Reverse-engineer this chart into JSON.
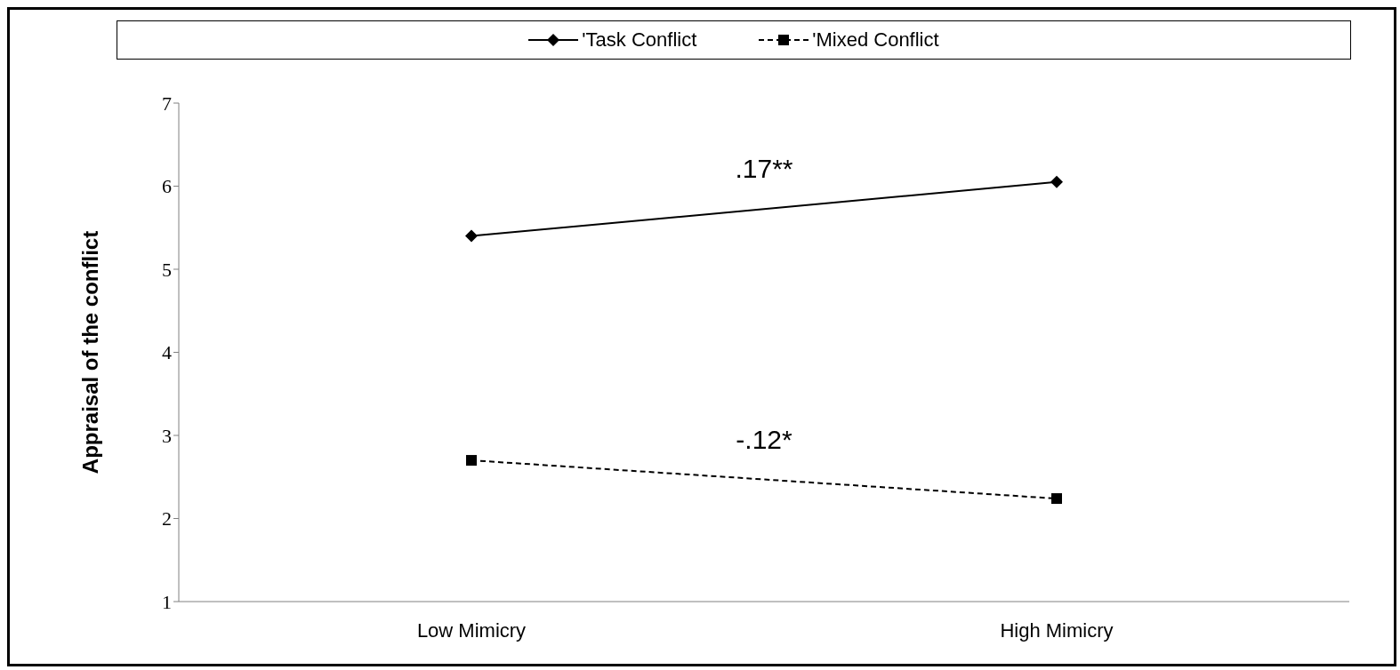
{
  "chart_data": {
    "type": "line",
    "ylabel": "Appraisal of the conflict",
    "categories": [
      "Low Mimicry",
      "High Mimicry"
    ],
    "series": [
      {
        "name": "'Task Conflict",
        "color": "#000000",
        "values": [
          5.4,
          6.05
        ],
        "marker": "diamond",
        "line_style": "solid"
      },
      {
        "name": "'Mixed Conflict",
        "color": "#000000",
        "values": [
          2.7,
          2.24
        ],
        "marker": "square",
        "line_style": "dashed"
      }
    ],
    "ylim": [
      1,
      7
    ],
    "yticks": [
      1,
      2,
      3,
      4,
      5,
      6,
      7
    ],
    "grid": false,
    "legend": "top",
    "annotations": [
      ".17**",
      "-.12*"
    ]
  }
}
